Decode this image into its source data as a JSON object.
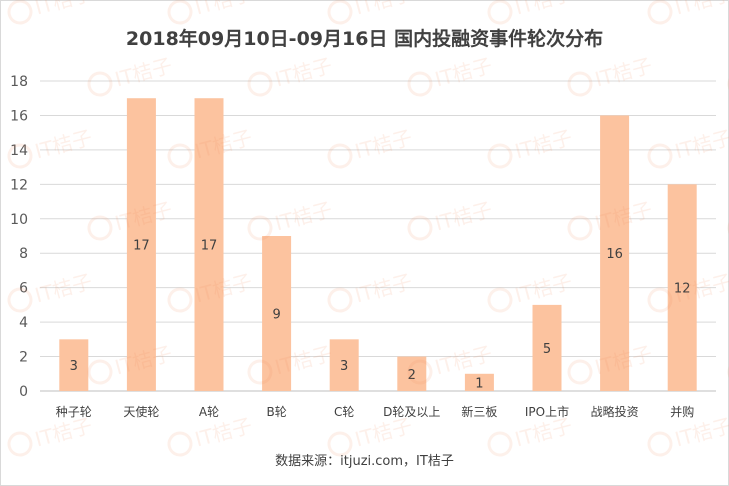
{
  "chart_data": {
    "type": "bar",
    "title": "2018年09月10日-09月16日 国内投融资事件轮次分布",
    "categories": [
      "种子轮",
      "天使轮",
      "A轮",
      "B轮",
      "C轮",
      "D轮及以上",
      "新三板",
      "IPO上市",
      "战略投资",
      "并购"
    ],
    "values": [
      3,
      17,
      17,
      9,
      3,
      2,
      1,
      5,
      16,
      12
    ],
    "ylim": [
      0,
      18
    ],
    "yticks": [
      0,
      2,
      4,
      6,
      8,
      10,
      12,
      14,
      16,
      18
    ],
    "grid": true,
    "bar_color": "#fcc39f",
    "grid_color": "#d9d9d9"
  },
  "source": "数据来源：itjuzi.com，IT桔子",
  "watermark": "IT桔子"
}
